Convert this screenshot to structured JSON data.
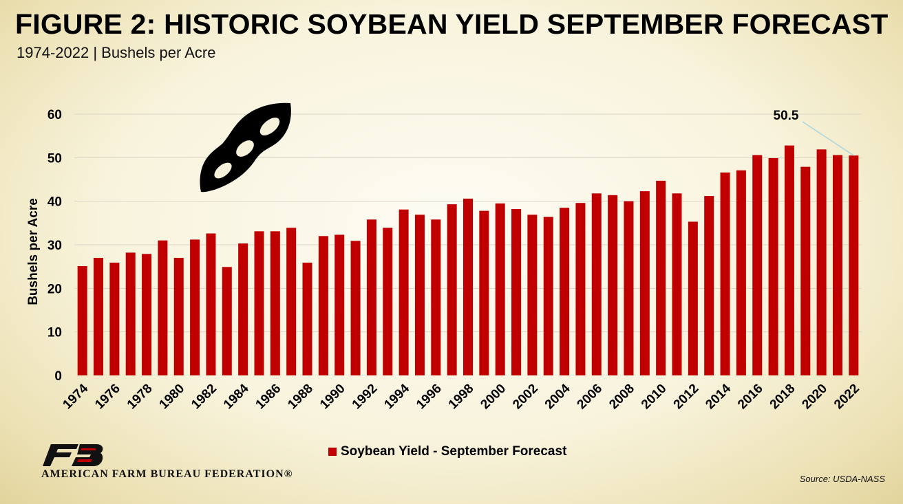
{
  "header": {
    "title": "FIGURE 2: HISTORIC SOYBEAN YIELD SEPTEMBER FORECAST",
    "subtitle": "1974-2022 | Bushels per Acre"
  },
  "chart_data": {
    "type": "bar",
    "title": "FIGURE 2: HISTORIC SOYBEAN YIELD SEPTEMBER FORECAST",
    "subtitle": "1974-2022 | Bushels per Acre",
    "xlabel": "",
    "ylabel": "Bushels per Acre",
    "ylim": [
      0,
      60
    ],
    "yticks": [
      0,
      10,
      20,
      30,
      40,
      50,
      60
    ],
    "grid": true,
    "legend_position": "bottom",
    "categories": [
      "1974",
      "1975",
      "1976",
      "1977",
      "1978",
      "1979",
      "1980",
      "1981",
      "1982",
      "1983",
      "1984",
      "1985",
      "1986",
      "1987",
      "1988",
      "1989",
      "1990",
      "1991",
      "1992",
      "1993",
      "1994",
      "1995",
      "1996",
      "1997",
      "1998",
      "1999",
      "2000",
      "2001",
      "2002",
      "2003",
      "2004",
      "2005",
      "2006",
      "2007",
      "2008",
      "2009",
      "2010",
      "2011",
      "2012",
      "2013",
      "2014",
      "2015",
      "2016",
      "2017",
      "2018",
      "2019",
      "2020",
      "2021",
      "2022"
    ],
    "xtick_labels": [
      "1974",
      "1976",
      "1978",
      "1980",
      "1982",
      "1984",
      "1986",
      "1988",
      "1990",
      "1992",
      "1994",
      "1996",
      "1998",
      "2000",
      "2002",
      "2004",
      "2006",
      "2008",
      "2010",
      "2012",
      "2014",
      "2016",
      "2018",
      "2020",
      "2022"
    ],
    "series": [
      {
        "name": "Soybean Yield - September Forecast",
        "color": "#c00000",
        "values": [
          25.1,
          27.0,
          25.9,
          28.2,
          27.9,
          31.0,
          27.0,
          31.2,
          32.6,
          24.9,
          30.3,
          33.1,
          33.1,
          33.9,
          25.9,
          32.0,
          32.3,
          30.9,
          35.8,
          33.9,
          38.1,
          36.9,
          35.8,
          39.3,
          40.6,
          37.8,
          39.5,
          38.2,
          36.9,
          36.4,
          38.5,
          39.6,
          41.8,
          41.4,
          40.0,
          42.3,
          44.7,
          41.8,
          35.3,
          41.2,
          46.6,
          47.1,
          50.6,
          49.9,
          52.8,
          47.9,
          51.9,
          50.6,
          50.5
        ]
      }
    ],
    "annotations": [
      {
        "text": "50.5",
        "category": "2022",
        "value": 50.5
      }
    ]
  },
  "branding": {
    "logo_icon": "afbf-logo-icon",
    "logo_text": "AMERICAN FARM BUREAU FEDERATION®",
    "decorative_icon": "soybean-pod-icon"
  },
  "source": "Source: USDA-NASS"
}
